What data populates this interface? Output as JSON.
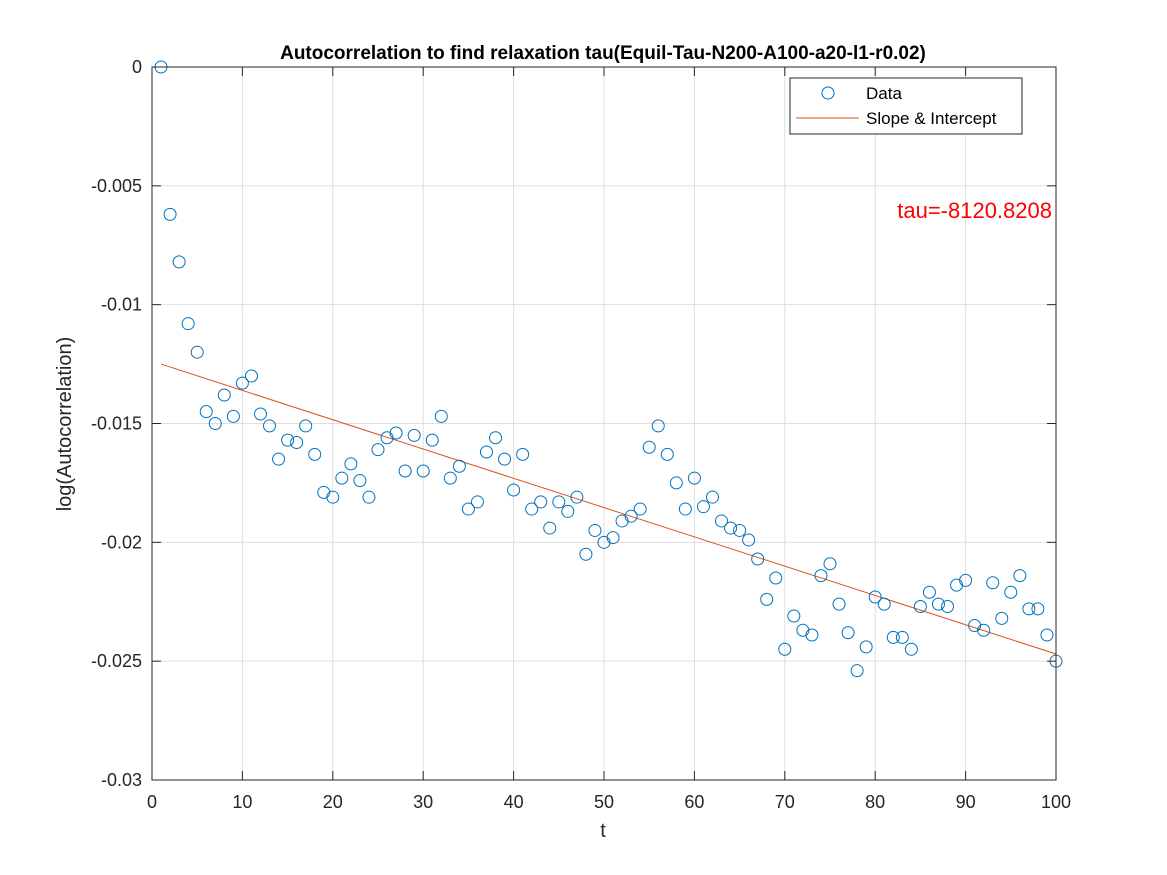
{
  "colors": {
    "data_marker": "#0072BD",
    "fit_line": "#D95319",
    "annotation": "#FF0000",
    "grid": "#DFDFDF",
    "axis": "#262626"
  },
  "chart_data": {
    "type": "scatter",
    "title": "Autocorrelation to find relaxation tau(Equil-Tau-N200-A100-a20-l1-r0.02)",
    "xlabel": "t",
    "ylabel": "log(Autocorrelation)",
    "xlim": [
      0,
      100
    ],
    "ylim": [
      -0.03,
      0
    ],
    "xticks": [
      0,
      10,
      20,
      30,
      40,
      50,
      60,
      70,
      80,
      90,
      100
    ],
    "yticks": [
      0,
      -0.005,
      -0.01,
      -0.015,
      -0.02,
      -0.025,
      -0.03
    ],
    "xtick_labels": [
      "0",
      "10",
      "20",
      "30",
      "40",
      "50",
      "60",
      "70",
      "80",
      "90",
      "100"
    ],
    "ytick_labels": [
      "0",
      "-0.005",
      "-0.01",
      "-0.015",
      "-0.02",
      "-0.025",
      "-0.03"
    ],
    "grid": true,
    "legend_position": "top-right",
    "annotation": "tau=-8120.8208",
    "series": [
      {
        "name": "Data",
        "style": "circle-markers",
        "x": [
          1,
          2,
          3,
          4,
          5,
          6,
          7,
          8,
          9,
          10,
          11,
          12,
          13,
          14,
          15,
          16,
          17,
          18,
          19,
          20,
          21,
          22,
          23,
          24,
          25,
          26,
          27,
          28,
          29,
          30,
          31,
          32,
          33,
          34,
          35,
          36,
          37,
          38,
          39,
          40,
          41,
          42,
          43,
          44,
          45,
          46,
          47,
          48,
          49,
          50,
          51,
          52,
          53,
          54,
          55,
          56,
          57,
          58,
          59,
          60,
          61,
          62,
          63,
          64,
          65,
          66,
          67,
          68,
          69,
          70,
          71,
          72,
          73,
          74,
          75,
          76,
          77,
          78,
          79,
          80,
          81,
          82,
          83,
          84,
          85,
          86,
          87,
          88,
          89,
          90,
          91,
          92,
          93,
          94,
          95,
          96,
          97,
          98,
          99,
          100
        ],
        "y": [
          0,
          -0.0062,
          -0.0082,
          -0.0108,
          -0.012,
          -0.0145,
          -0.015,
          -0.0138,
          -0.0147,
          -0.0133,
          -0.013,
          -0.0146,
          -0.0151,
          -0.0165,
          -0.0157,
          -0.0158,
          -0.0151,
          -0.0163,
          -0.0179,
          -0.0181,
          -0.0173,
          -0.0167,
          -0.0174,
          -0.0181,
          -0.0161,
          -0.0156,
          -0.0154,
          -0.017,
          -0.0155,
          -0.017,
          -0.0157,
          -0.0147,
          -0.0173,
          -0.0168,
          -0.0186,
          -0.0183,
          -0.0162,
          -0.0156,
          -0.0165,
          -0.0178,
          -0.0163,
          -0.0186,
          -0.0183,
          -0.0194,
          -0.0183,
          -0.0187,
          -0.0181,
          -0.0205,
          -0.0195,
          -0.02,
          -0.0198,
          -0.0191,
          -0.0189,
          -0.0186,
          -0.016,
          -0.0151,
          -0.0163,
          -0.0175,
          -0.0186,
          -0.0173,
          -0.0185,
          -0.0181,
          -0.0191,
          -0.0194,
          -0.0195,
          -0.0199,
          -0.0207,
          -0.0224,
          -0.0215,
          -0.0245,
          -0.0231,
          -0.0237,
          -0.0239,
          -0.0214,
          -0.0209,
          -0.0226,
          -0.0238,
          -0.0254,
          -0.0244,
          -0.0223,
          -0.0226,
          -0.024,
          -0.024,
          -0.0245,
          -0.0227,
          -0.0221,
          -0.0226,
          -0.0227,
          -0.0218,
          -0.0216,
          -0.0235,
          -0.0237,
          -0.0217,
          -0.0232,
          -0.0221,
          -0.0214,
          -0.0228,
          -0.0228,
          -0.0239,
          -0.025
        ]
      },
      {
        "name": "Slope & Intercept",
        "style": "line",
        "x": [
          1,
          100
        ],
        "y": [
          -0.0125,
          -0.0247
        ]
      }
    ]
  }
}
